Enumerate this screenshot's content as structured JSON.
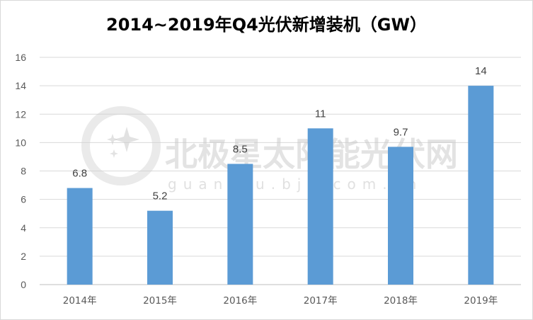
{
  "chart_data": {
    "type": "bar",
    "title": "2014~2019年Q4光伏新增装机（GW）",
    "categories": [
      "2014年",
      "2015年",
      "2016年",
      "2017年",
      "2018年",
      "2019年"
    ],
    "values": [
      6.8,
      5.2,
      8.5,
      11,
      9.7,
      14
    ],
    "data_labels": [
      "6.8",
      "5.2",
      "8.5",
      "11",
      "9.7",
      "14"
    ],
    "yticks": [
      "0",
      "2",
      "4",
      "6",
      "8",
      "10",
      "12",
      "14",
      "16"
    ],
    "ylim": [
      0,
      16
    ],
    "grid": true,
    "legend": "none",
    "bar_color": "#5b9bd5"
  },
  "watermark": {
    "main": "北极星太阳能光伏网",
    "sub": "guangfu.bjx.com.cn",
    "icon": "star-logo-icon"
  }
}
